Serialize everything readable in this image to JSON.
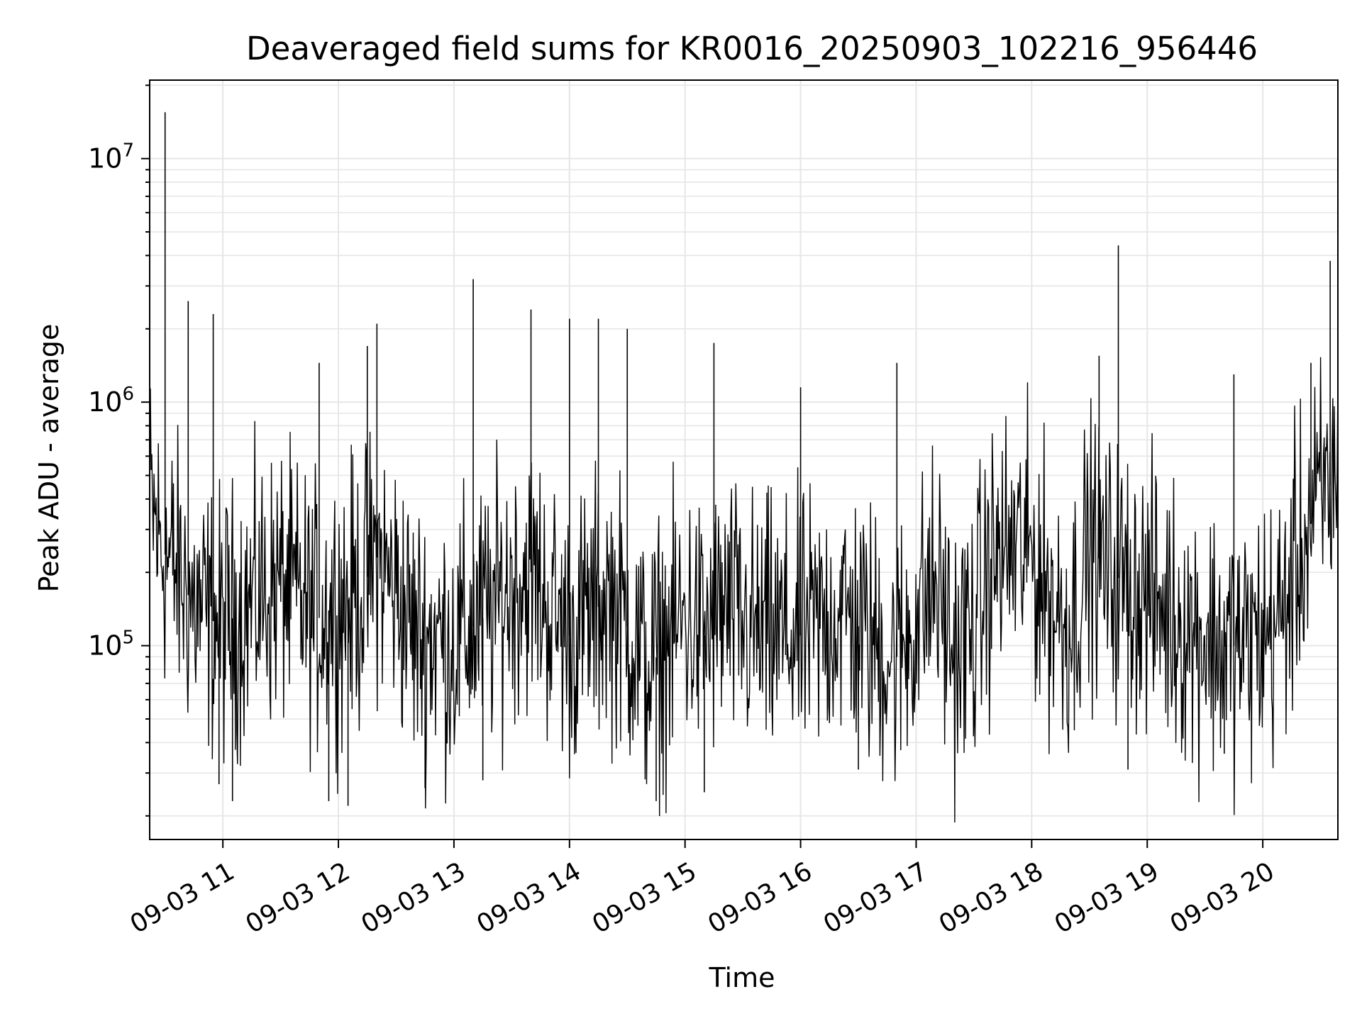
{
  "chart_data": {
    "type": "line",
    "title": "Deaveraged field sums for KR0016_20250903_102216_956446",
    "xlabel": "Time",
    "ylabel": "Peak ADU - average",
    "yscale": "log",
    "ylim": [
      16000,
      21000000
    ],
    "xlim": [
      "2025-09-03 10:22",
      "2025-09-03 20:39"
    ],
    "grid": true,
    "line_color": "#000000",
    "x_ticks": [
      {
        "value": "2025-09-03 11:00",
        "label": "09-03 11"
      },
      {
        "value": "2025-09-03 12:00",
        "label": "09-03 12"
      },
      {
        "value": "2025-09-03 13:00",
        "label": "09-03 13"
      },
      {
        "value": "2025-09-03 14:00",
        "label": "09-03 14"
      },
      {
        "value": "2025-09-03 15:00",
        "label": "09-03 15"
      },
      {
        "value": "2025-09-03 16:00",
        "label": "09-03 16"
      },
      {
        "value": "2025-09-03 17:00",
        "label": "09-03 17"
      },
      {
        "value": "2025-09-03 18:00",
        "label": "09-03 18"
      },
      {
        "value": "2025-09-03 19:00",
        "label": "09-03 19"
      },
      {
        "value": "2025-09-03 20:00",
        "label": "09-03 20"
      }
    ],
    "y_ticks": [
      {
        "value": 100000,
        "base": "10",
        "exp": "5"
      },
      {
        "value": 1000000,
        "base": "10",
        "exp": "6"
      },
      {
        "value": 10000000,
        "base": "10",
        "exp": "7"
      }
    ],
    "series": [
      {
        "x": [
          "2025-09-03 10:22",
          "2025-09-03 10:28",
          "2025-09-03 10:36",
          "2025-09-03 10:44",
          "2025-09-03 10:52",
          "2025-09-03 11:00",
          "2025-09-03 11:10",
          "2025-09-03 11:20",
          "2025-09-03 11:30",
          "2025-09-03 11:40",
          "2025-09-03 11:50",
          "2025-09-03 12:00",
          "2025-09-03 12:10",
          "2025-09-03 12:20",
          "2025-09-03 12:30",
          "2025-09-03 12:40",
          "2025-09-03 12:50",
          "2025-09-03 13:00",
          "2025-09-03 13:10",
          "2025-09-03 13:20",
          "2025-09-03 13:30",
          "2025-09-03 13:40",
          "2025-09-03 13:50",
          "2025-09-03 14:00",
          "2025-09-03 14:10",
          "2025-09-03 14:20",
          "2025-09-03 14:30",
          "2025-09-03 14:40",
          "2025-09-03 14:50",
          "2025-09-03 15:00",
          "2025-09-03 15:10",
          "2025-09-03 15:20",
          "2025-09-03 15:30",
          "2025-09-03 15:40",
          "2025-09-03 15:50",
          "2025-09-03 16:00",
          "2025-09-03 16:10",
          "2025-09-03 16:20",
          "2025-09-03 16:30",
          "2025-09-03 16:40",
          "2025-09-03 16:50",
          "2025-09-03 17:00",
          "2025-09-03 17:10",
          "2025-09-03 17:20",
          "2025-09-03 17:30",
          "2025-09-03 17:40",
          "2025-09-03 17:50",
          "2025-09-03 18:00",
          "2025-09-03 18:10",
          "2025-09-03 18:20",
          "2025-09-03 18:30",
          "2025-09-03 18:40",
          "2025-09-03 18:50",
          "2025-09-03 19:00",
          "2025-09-03 19:10",
          "2025-09-03 19:20",
          "2025-09-03 19:30",
          "2025-09-03 19:40",
          "2025-09-03 19:50",
          "2025-09-03 20:00",
          "2025-09-03 20:10",
          "2025-09-03 20:20",
          "2025-09-03 20:30",
          "2025-09-03 20:39"
        ],
        "y": [
          400000,
          250000,
          200000,
          150000,
          130000,
          120000,
          140000,
          160000,
          180000,
          150000,
          130000,
          150000,
          160000,
          230000,
          170000,
          110000,
          110000,
          100000,
          120000,
          140000,
          180000,
          200000,
          140000,
          110000,
          130000,
          160000,
          120000,
          80000,
          100000,
          130000,
          110000,
          140000,
          120000,
          110000,
          110000,
          110000,
          120000,
          140000,
          120000,
          100000,
          90000,
          130000,
          180000,
          90000,
          120000,
          220000,
          250000,
          240000,
          150000,
          120000,
          260000,
          200000,
          180000,
          160000,
          140000,
          120000,
          110000,
          100000,
          100000,
          110000,
          130000,
          250000,
          400000,
          500000
        ]
      }
    ],
    "spikes": [
      {
        "x": "2025-09-03 10:30",
        "y": 15500000
      },
      {
        "x": "2025-09-03 10:42",
        "y": 2600000
      },
      {
        "x": "2025-09-03 10:55",
        "y": 2300000
      },
      {
        "x": "2025-09-03 11:50",
        "y": 1450000
      },
      {
        "x": "2025-09-03 12:15",
        "y": 1700000
      },
      {
        "x": "2025-09-03 12:20",
        "y": 2100000
      },
      {
        "x": "2025-09-03 13:10",
        "y": 3200000
      },
      {
        "x": "2025-09-03 13:40",
        "y": 2400000
      },
      {
        "x": "2025-09-03 14:00",
        "y": 2200000
      },
      {
        "x": "2025-09-03 14:15",
        "y": 2200000
      },
      {
        "x": "2025-09-03 14:30",
        "y": 2000000
      },
      {
        "x": "2025-09-03 15:15",
        "y": 1750000
      },
      {
        "x": "2025-09-03 16:00",
        "y": 1150000
      },
      {
        "x": "2025-09-03 16:50",
        "y": 1450000
      },
      {
        "x": "2025-09-03 18:35",
        "y": 1550000
      },
      {
        "x": "2025-09-03 18:45",
        "y": 4400000
      },
      {
        "x": "2025-09-03 19:45",
        "y": 1300000
      },
      {
        "x": "2025-09-03 20:25",
        "y": 1450000
      },
      {
        "x": "2025-09-03 20:35",
        "y": 3800000
      }
    ],
    "dips": [
      {
        "x": "2025-09-03 10:58",
        "y": 27000
      },
      {
        "x": "2025-09-03 11:05",
        "y": 23000
      },
      {
        "x": "2025-09-03 11:55",
        "y": 23000
      },
      {
        "x": "2025-09-03 12:05",
        "y": 22000
      },
      {
        "x": "2025-09-03 12:45",
        "y": 26000
      },
      {
        "x": "2025-09-03 13:15",
        "y": 28000
      },
      {
        "x": "2025-09-03 14:45",
        "y": 23000
      },
      {
        "x": "2025-09-03 15:10",
        "y": 25000
      },
      {
        "x": "2025-09-03 16:30",
        "y": 31000
      },
      {
        "x": "2025-09-03 18:50",
        "y": 31000
      },
      {
        "x": "2025-09-03 19:40",
        "y": 36000
      }
    ]
  }
}
